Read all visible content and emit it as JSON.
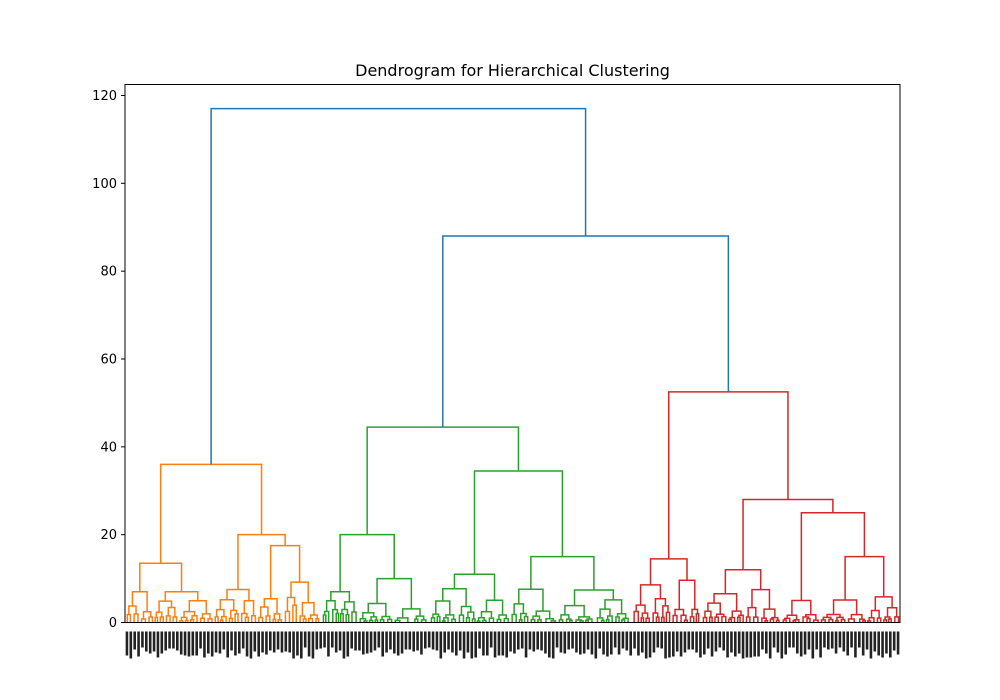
{
  "chart_data": {
    "type": "dendrogram",
    "title": "Dendrogram for Hierarchical Clustering",
    "xlabel": "",
    "ylabel": "",
    "ylim": [
      0,
      122.5
    ],
    "yticks": [
      0,
      20,
      40,
      60,
      80,
      100,
      120
    ],
    "grid": false,
    "colors": {
      "cluster_1": "#ff7f0e",
      "cluster_2": "#2ca02c",
      "cluster_3": "#d62728",
      "above_threshold": "#1f77b4"
    },
    "leaf_count_approx": 200,
    "leaf_labels_note": "",
    "root_merge_height": 117,
    "top_links": [
      {
        "color": "above_threshold",
        "height": 117,
        "children": [
          "cluster_1",
          "upper_right"
        ]
      },
      {
        "color": "above_threshold",
        "height": 88,
        "children": [
          "cluster_2",
          "cluster_3"
        ]
      }
    ],
    "clusters": [
      {
        "name": "cluster_1",
        "color": "cluster_1",
        "root_height": 36,
        "merges": [
          {
            "height": 36,
            "left": 13.5,
            "right": 20
          },
          {
            "height": 13.5,
            "left": 7,
            "right": 7
          },
          {
            "height": 20,
            "left": 7.5,
            "right": 17.5
          }
        ]
      },
      {
        "name": "cluster_2",
        "color": "cluster_2",
        "root_height": 44.5,
        "merges": [
          {
            "height": 44.5,
            "left": 20,
            "right": 34.5
          },
          {
            "height": 20,
            "left": 7,
            "right": 10
          },
          {
            "height": 34.5,
            "left": 11,
            "right": 15
          }
        ]
      },
      {
        "name": "cluster_3",
        "color": "cluster_3",
        "root_height": 52.5,
        "merges": [
          {
            "height": 52.5,
            "left": 14.5,
            "right": 28
          },
          {
            "height": 28,
            "left": 12,
            "right": 25
          },
          {
            "height": 25,
            "left": 5,
            "right": 15
          }
        ]
      }
    ]
  }
}
